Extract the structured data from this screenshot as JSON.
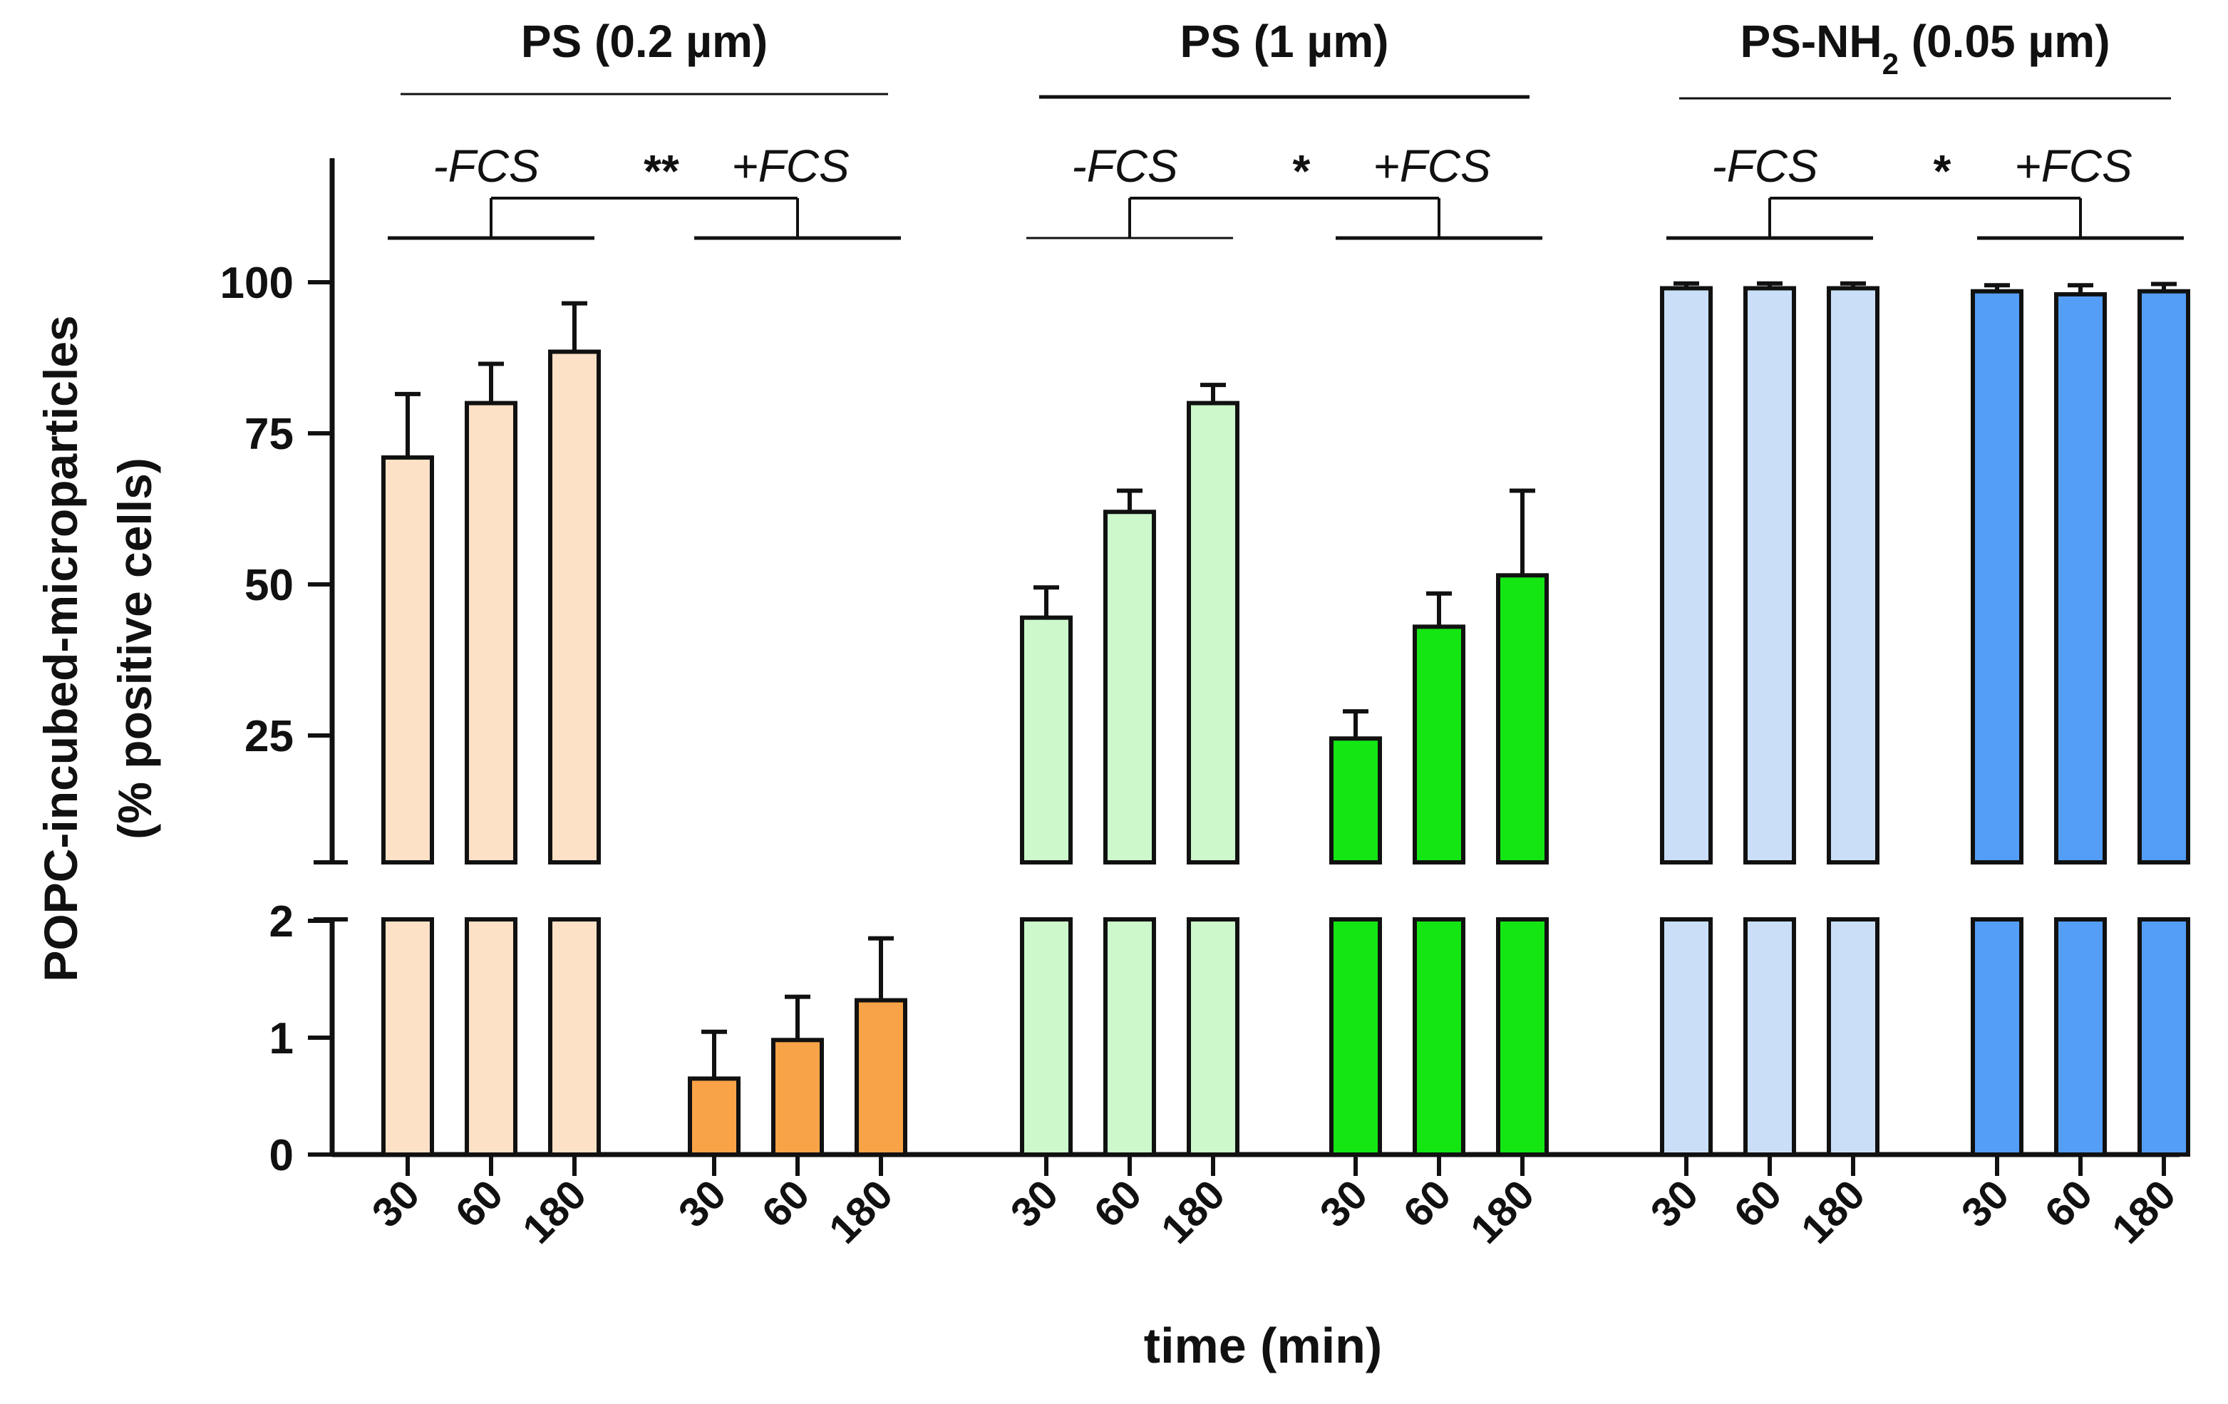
{
  "chart_data": {
    "type": "bar",
    "title": "",
    "xlabel": "time (min)",
    "ylabel_line1": "POPC-incubed-microparticles",
    "ylabel_line2": "(% positive cells)",
    "axis_break": {
      "lower_range": [
        0,
        2
      ],
      "upper_range": [
        0,
        120
      ]
    },
    "lower_ticks": [
      "0",
      "1",
      "2"
    ],
    "upper_ticks": [
      "25",
      "50",
      "75",
      "100"
    ],
    "groups": [
      {
        "particle": "PS (0.2 µm)",
        "particle_parts": {
          "main": "PS (0.2 µm)",
          "sub": "",
          "tail": ""
        },
        "significance": "**",
        "conditions": [
          {
            "label": "-FCS",
            "times": [
              "30",
              "60",
              "180"
            ],
            "values": [
              71,
              80,
              88.5
            ],
            "errors": [
              10.5,
              6.5,
              8
            ],
            "color": "#fde1c6"
          },
          {
            "label": "+FCS",
            "times": [
              "30",
              "60",
              "180"
            ],
            "values": [
              0.65,
              0.98,
              1.32
            ],
            "errors": [
              0.4,
              0.37,
              0.53
            ],
            "color": "#f8a347"
          }
        ]
      },
      {
        "particle": "PS (1 µm)",
        "particle_parts": {
          "main": "PS (1 µm)",
          "sub": "",
          "tail": ""
        },
        "significance": "*",
        "conditions": [
          {
            "label": "-FCS",
            "times": [
              "30",
              "60",
              "180"
            ],
            "values": [
              44.5,
              62,
              80
            ],
            "errors": [
              5,
              3.5,
              3
            ],
            "color": "#ccf8cc"
          },
          {
            "label": "+FCS",
            "times": [
              "30",
              "60",
              "180"
            ],
            "values": [
              24.5,
              43,
              51.5
            ],
            "errors": [
              4.5,
              5.5,
              14
            ],
            "color": "#14e614"
          }
        ]
      },
      {
        "particle": "PS-NH2 (0.05 µm)",
        "particle_parts": {
          "main": "PS-NH",
          "sub": "2",
          "tail": " (0.05 µm)"
        },
        "significance": "*",
        "conditions": [
          {
            "label": "-FCS",
            "times": [
              "30",
              "60",
              "180"
            ],
            "values": [
              99,
              99,
              99
            ],
            "errors": [
              0.8,
              0.8,
              0.8
            ],
            "color": "#cadff7"
          },
          {
            "label": "+FCS",
            "times": [
              "30",
              "60",
              "180"
            ],
            "values": [
              98.5,
              98,
              98.5
            ],
            "errors": [
              1,
              1.5,
              1.2
            ],
            "color": "#549ef8"
          }
        ]
      }
    ],
    "colors": {
      "axis": "#111111"
    }
  }
}
